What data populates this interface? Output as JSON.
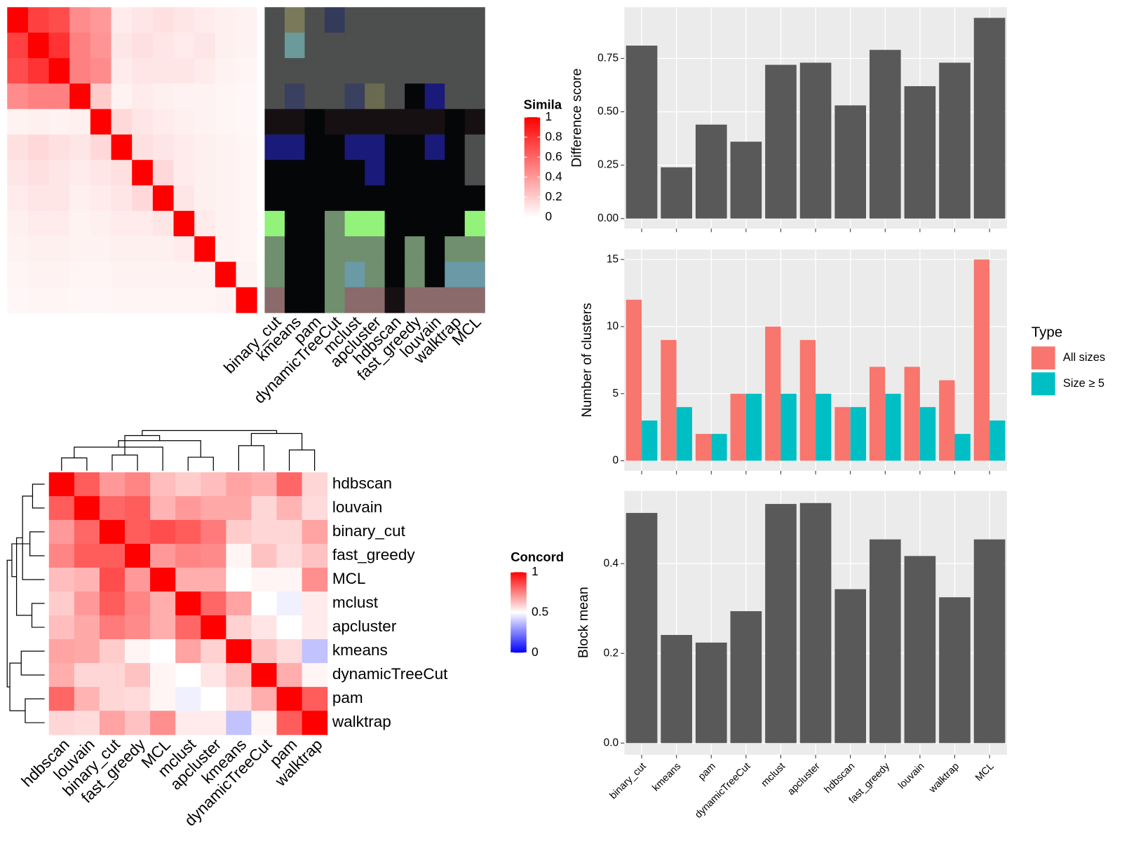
{
  "similarity_heatmap": {
    "legend_title": "Simila",
    "legend_ticks": [
      0,
      0.2,
      0.4,
      0.6,
      0.8,
      1
    ],
    "matrix": [
      [
        1,
        0.75,
        0.7,
        0.45,
        0.4,
        0.08,
        0.1,
        0.12,
        0.1,
        0.08,
        0.06,
        0.05
      ],
      [
        0.75,
        1,
        0.8,
        0.5,
        0.42,
        0.1,
        0.12,
        0.1,
        0.08,
        0.1,
        0.06,
        0.05
      ],
      [
        0.7,
        0.8,
        1,
        0.5,
        0.45,
        0.08,
        0.1,
        0.1,
        0.1,
        0.08,
        0.05,
        0.04
      ],
      [
        0.45,
        0.5,
        0.5,
        1,
        0.2,
        0.05,
        0.08,
        0.06,
        0.05,
        0.05,
        0.04,
        0.03
      ],
      [
        0.05,
        0.06,
        0.05,
        0.06,
        1,
        0.15,
        0.1,
        0.08,
        0.06,
        0.05,
        0.04,
        0.03
      ],
      [
        0.12,
        0.15,
        0.12,
        0.1,
        0.15,
        1,
        0.12,
        0.1,
        0.08,
        0.06,
        0.05,
        0.04
      ],
      [
        0.1,
        0.12,
        0.1,
        0.08,
        0.1,
        0.12,
        1,
        0.15,
        0.08,
        0.06,
        0.05,
        0.04
      ],
      [
        0.08,
        0.1,
        0.1,
        0.06,
        0.08,
        0.1,
        0.15,
        1,
        0.1,
        0.06,
        0.05,
        0.04
      ],
      [
        0.06,
        0.08,
        0.08,
        0.05,
        0.06,
        0.08,
        0.08,
        0.1,
        1,
        0.08,
        0.05,
        0.04
      ],
      [
        0.05,
        0.06,
        0.06,
        0.05,
        0.05,
        0.06,
        0.06,
        0.06,
        0.08,
        1,
        0.05,
        0.04
      ],
      [
        0.04,
        0.05,
        0.05,
        0.04,
        0.04,
        0.05,
        0.05,
        0.05,
        0.05,
        0.05,
        1,
        0.05
      ],
      [
        0.03,
        0.04,
        0.04,
        0.03,
        0.03,
        0.04,
        0.04,
        0.04,
        0.04,
        0.04,
        0.05,
        1
      ]
    ]
  },
  "cluster_panel": {
    "methods": [
      "binary_cut",
      "kmeans",
      "pam",
      "dynamicTreeCut",
      "mclust",
      "apcluster",
      "hdbscan",
      "fast_greedy",
      "louvain",
      "walktrap",
      "MCL"
    ],
    "colors": [
      [
        "#4d4f4f",
        "#7a7a5a",
        "#4d4f4f",
        "#333a5a",
        "#4d4f4f",
        "#4d4f4f",
        "#4d4f4f",
        "#4d4f4f",
        "#4d4f4f",
        "#4d4f4f",
        "#4d4f4f"
      ],
      [
        "#4d4f4f",
        "#6a9a9a",
        "#4d4f4f",
        "#4d4f4f",
        "#4d4f4f",
        "#4d4f4f",
        "#4d4f4f",
        "#4d4f4f",
        "#4d4f4f",
        "#4d4f4f",
        "#4d4f4f"
      ],
      [
        "#4d4f4f",
        "#4d4f4f",
        "#4d4f4f",
        "#4d4f4f",
        "#4d4f4f",
        "#4d4f4f",
        "#4d4f4f",
        "#4d4f4f",
        "#4d4f4f",
        "#4d4f4f",
        "#4d4f4f"
      ],
      [
        "#4d4f4f",
        "#3a4060",
        "#4d4f4f",
        "#4d4f4f",
        "#3a4060",
        "#6a6a50",
        "#4d4f4f",
        "#050608",
        "#1a1a7a",
        "#4d4f4f",
        "#4d4f4f"
      ],
      [
        "#161012",
        "#161012",
        "#050608",
        "#161012",
        "#161012",
        "#161012",
        "#161012",
        "#161012",
        "#161012",
        "#050608",
        "#161012"
      ],
      [
        "#1a1a7a",
        "#1a1a7a",
        "#050608",
        "#050608",
        "#1a1a7a",
        "#1a1a7a",
        "#050608",
        "#050608",
        "#1a1a7a",
        "#050608",
        "#4d4f4f"
      ],
      [
        "#050608",
        "#050608",
        "#050608",
        "#050608",
        "#050608",
        "#1a1a7a",
        "#050608",
        "#050608",
        "#050608",
        "#050608",
        "#4d4f4f"
      ],
      [
        "#050608",
        "#050608",
        "#050608",
        "#050608",
        "#050608",
        "#050608",
        "#050608",
        "#050608",
        "#050608",
        "#050608",
        "#050608"
      ],
      [
        "#92f27a",
        "#050608",
        "#050608",
        "#6f8f6f",
        "#92f27a",
        "#92f27a",
        "#050608",
        "#050608",
        "#050608",
        "#050608",
        "#92f27a"
      ],
      [
        "#6f8f6f",
        "#050608",
        "#050608",
        "#6f8f6f",
        "#6f8f6f",
        "#6f8f6f",
        "#050608",
        "#6f8f6f",
        "#050608",
        "#6f8f6f",
        "#6f8f6f"
      ],
      [
        "#6f8f6f",
        "#050608",
        "#050608",
        "#6f8f6f",
        "#6a9aa6",
        "#6f8f6f",
        "#050608",
        "#6f8f6f",
        "#050608",
        "#6a9aa6",
        "#6a9aa6"
      ],
      [
        "#8a6a6a",
        "#050608",
        "#050608",
        "#6f8f6f",
        "#8a6a6a",
        "#8a6a6a",
        "#161012",
        "#8a6a6a",
        "#8a6a6a",
        "#8a6a6a",
        "#8a6a6a"
      ]
    ]
  },
  "concordance": {
    "legend_title": "Concord",
    "legend_ticks": [
      0,
      0.5,
      1
    ],
    "labels": [
      "hdbscan",
      "louvain",
      "binary_cut",
      "fast_greedy",
      "MCL",
      "mclust",
      "apcluster",
      "kmeans",
      "dynamicTreeCut",
      "pam",
      "walktrap"
    ],
    "matrix": [
      [
        1,
        0.82,
        0.7,
        0.74,
        0.63,
        0.6,
        0.63,
        0.68,
        0.66,
        0.8,
        0.58
      ],
      [
        0.82,
        1,
        0.8,
        0.82,
        0.65,
        0.7,
        0.67,
        0.67,
        0.58,
        0.65,
        0.57
      ],
      [
        0.7,
        0.8,
        1,
        0.82,
        0.85,
        0.82,
        0.76,
        0.6,
        0.58,
        0.58,
        0.68
      ],
      [
        0.74,
        0.82,
        0.82,
        1,
        0.7,
        0.74,
        0.73,
        0.52,
        0.62,
        0.57,
        0.62
      ],
      [
        0.63,
        0.65,
        0.85,
        0.7,
        1,
        0.66,
        0.66,
        0.5,
        0.52,
        0.52,
        0.72
      ],
      [
        0.6,
        0.7,
        0.82,
        0.74,
        0.66,
        1,
        0.8,
        0.68,
        0.5,
        0.47,
        0.54
      ],
      [
        0.63,
        0.67,
        0.76,
        0.73,
        0.66,
        0.8,
        1,
        0.59,
        0.55,
        0.5,
        0.54
      ],
      [
        0.68,
        0.67,
        0.6,
        0.52,
        0.5,
        0.68,
        0.59,
        1,
        0.62,
        0.57,
        0.38
      ],
      [
        0.66,
        0.58,
        0.58,
        0.62,
        0.52,
        0.5,
        0.55,
        0.62,
        1,
        0.66,
        0.52
      ],
      [
        0.8,
        0.65,
        0.58,
        0.57,
        0.52,
        0.47,
        0.5,
        0.57,
        0.66,
        1,
        0.82
      ],
      [
        0.58,
        0.57,
        0.68,
        0.62,
        0.72,
        0.54,
        0.54,
        0.38,
        0.52,
        0.82,
        1
      ]
    ]
  },
  "chart_data": [
    {
      "type": "bar",
      "y_label": "Difference score",
      "color": "#595959",
      "values": [
        0.81,
        0.24,
        0.44,
        0.36,
        0.72,
        0.73,
        0.53,
        0.79,
        0.62,
        0.73,
        0.94
      ],
      "ylim": [
        -0.047,
        0.99
      ],
      "yticks": [
        {
          "value": 0,
          "label": "0.00"
        },
        {
          "value": 0.25,
          "label": "0.25"
        },
        {
          "value": 0.5,
          "label": "0.50"
        },
        {
          "value": 0.75,
          "label": "0.75"
        }
      ]
    },
    {
      "type": "grouped_bar",
      "y_label": "Number of clusters",
      "legend_title": "Type",
      "series": [
        {
          "name": "All sizes",
          "color": "#f8766d",
          "values": [
            12,
            9,
            2,
            5,
            10,
            9,
            4,
            7,
            7,
            6,
            15
          ]
        },
        {
          "name": "Size ≥ 5",
          "color": "#00bfc4",
          "values": [
            3,
            4,
            2,
            5,
            5,
            5,
            4,
            5,
            4,
            2,
            3
          ]
        }
      ],
      "ylim": [
        -0.75,
        15.75
      ],
      "yticks": [
        0,
        5,
        10,
        15
      ]
    },
    {
      "type": "bar",
      "y_label": "Block mean",
      "color": "#595959",
      "categories": [
        "binary_cut",
        "kmeans",
        "pam",
        "dynamicTreeCut",
        "mclust",
        "apcluster",
        "hdbscan",
        "fast_greedy",
        "louvain",
        "walktrap",
        "MCL"
      ],
      "values": [
        0.513,
        0.241,
        0.224,
        0.294,
        0.533,
        0.535,
        0.343,
        0.454,
        0.417,
        0.325,
        0.454
      ],
      "ylim": [
        -0.026,
        0.562
      ],
      "yticks": [
        {
          "value": 0,
          "label": "0.0"
        },
        {
          "value": 0.2,
          "label": "0.2"
        },
        {
          "value": 0.4,
          "label": "0.4"
        }
      ]
    }
  ]
}
